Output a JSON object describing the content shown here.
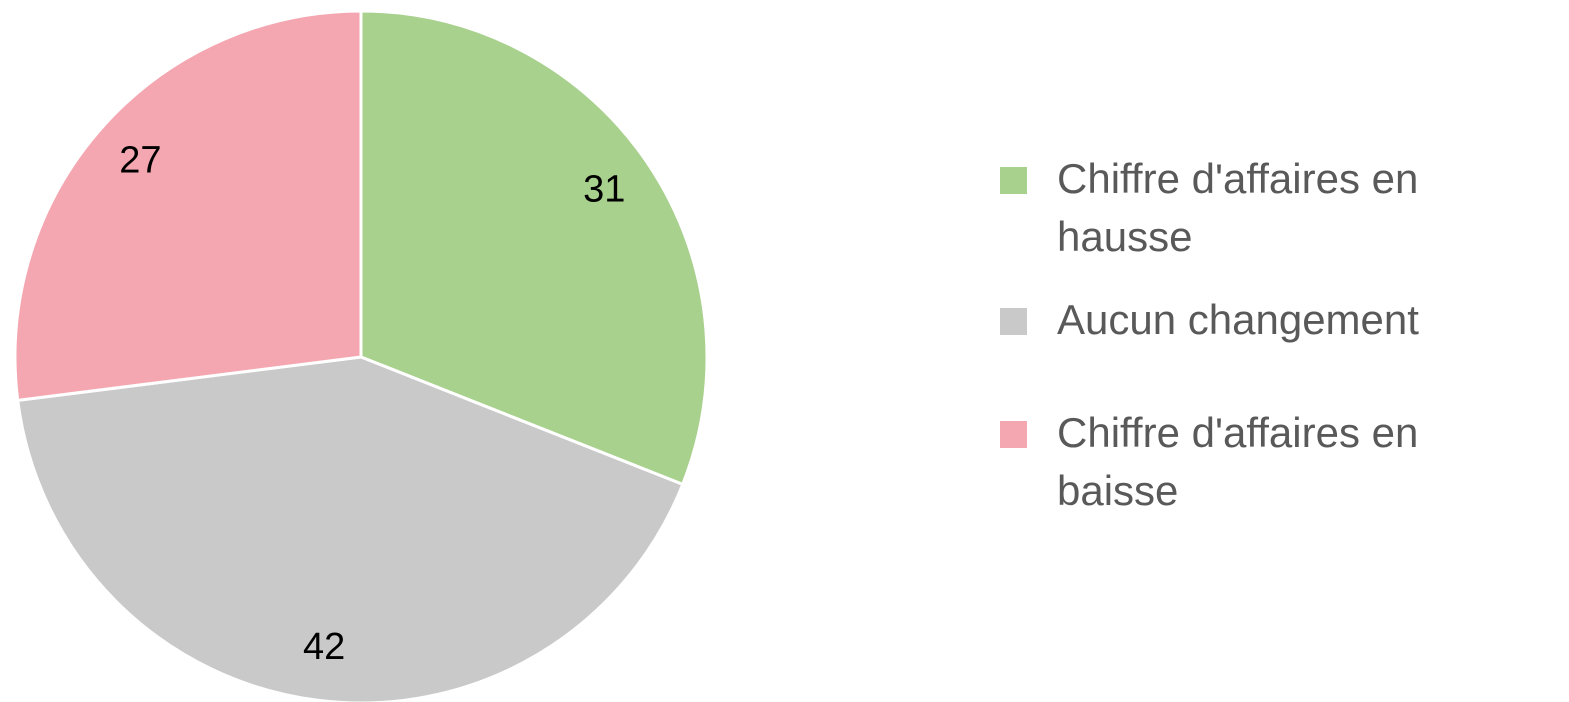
{
  "chart_data": {
    "type": "pie",
    "categories": [
      "Chiffre d'affaires en hausse",
      "Aucun changement",
      "Chiffre d'affaires en baisse"
    ],
    "values": [
      31,
      42,
      27
    ],
    "colors": [
      "#a9d18e",
      "#c9c9c9",
      "#f4a7b0"
    ],
    "legend": "right"
  }
}
